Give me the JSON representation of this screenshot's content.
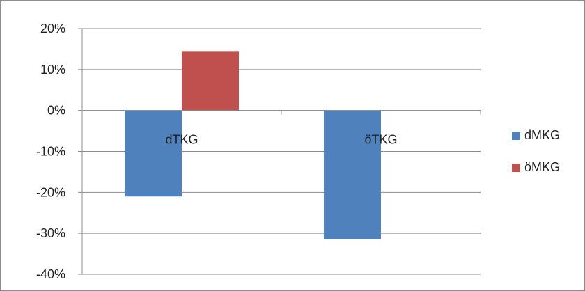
{
  "chart_data": {
    "type": "bar",
    "categories": [
      "dTKG",
      "öTKG"
    ],
    "series": [
      {
        "name": "dMKG",
        "values": [
          -21,
          -31.5
        ],
        "color": "#4f81bd"
      },
      {
        "name": "öMKG",
        "values": [
          14.5,
          null
        ],
        "color": "#c0504d"
      }
    ],
    "y_ticks": [
      "20%",
      "10%",
      "0%",
      "-10%",
      "-20%",
      "-30%",
      "-40%"
    ],
    "ylim": [
      -40,
      20
    ],
    "y_unit": "%",
    "grid": true,
    "legend_position": "right"
  }
}
